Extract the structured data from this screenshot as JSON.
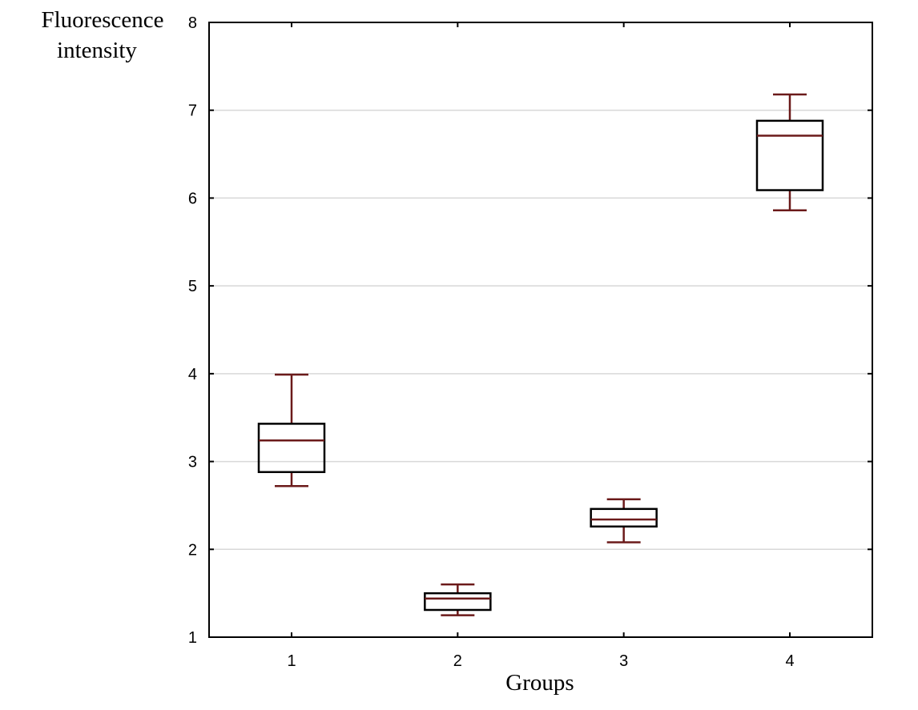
{
  "chart_data": {
    "type": "box",
    "title": "",
    "ylabel": [
      "Fluorescence",
      "intensity"
    ],
    "xlabel": "Groups",
    "categories": [
      "1",
      "2",
      "3",
      "4"
    ],
    "ylim": [
      1,
      8
    ],
    "yticks": [
      1,
      2,
      3,
      4,
      5,
      6,
      7,
      8
    ],
    "grid": true,
    "box_color": "#6b1a1a",
    "boxes": [
      {
        "group": "1",
        "min": 2.72,
        "q1": 2.88,
        "median": 3.24,
        "q3": 3.43,
        "max": 3.99
      },
      {
        "group": "2",
        "min": 1.25,
        "q1": 1.31,
        "median": 1.44,
        "q3": 1.5,
        "max": 1.6
      },
      {
        "group": "3",
        "min": 2.08,
        "q1": 2.26,
        "median": 2.34,
        "q3": 2.46,
        "max": 2.57
      },
      {
        "group": "4",
        "min": 5.86,
        "q1": 6.09,
        "median": 6.71,
        "q3": 6.88,
        "max": 7.18
      }
    ]
  }
}
